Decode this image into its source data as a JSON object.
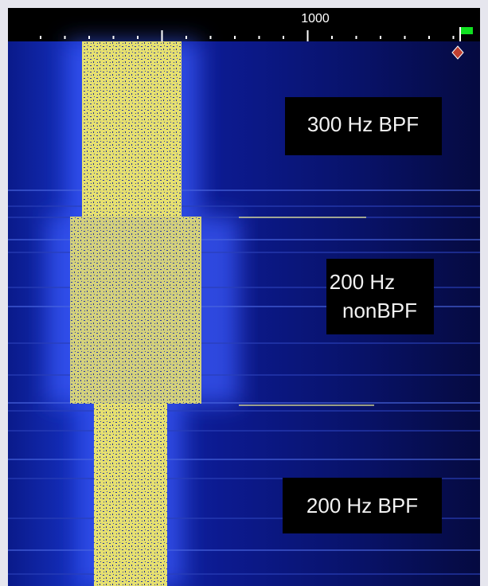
{
  "ruler": {
    "label": "1000"
  },
  "annotations": {
    "top": "300 Hz BPF",
    "middle_line1": "200 Hz",
    "middle_line2": "nonBPF",
    "bottom": "200 Hz BPF"
  }
}
